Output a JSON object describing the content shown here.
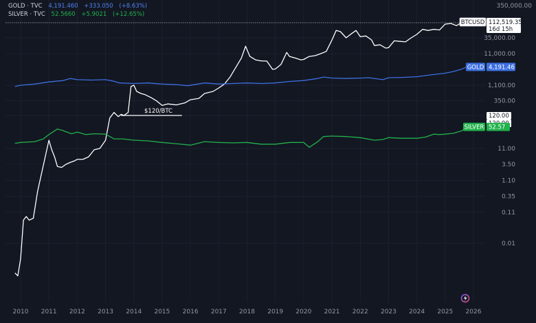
{
  "legend": {
    "gold": {
      "name": "GOLD · TVC",
      "value": "4,191.460",
      "change": "+333.050",
      "change_pct": "(+8.63%)"
    },
    "silver": {
      "name": "SILVER · TVC",
      "value": "52.5660",
      "change": "+5.9021",
      "change_pct": "(+12.65%)"
    }
  },
  "colors": {
    "background": "#131722",
    "btc": "#ffffff",
    "gold": "#3d6fe0",
    "silver": "#22b14c",
    "axis_text": "#9598a1"
  },
  "badges": {
    "btc": {
      "label": "BTCUSD",
      "value": "112,519.35",
      "countdown": "16d 15h"
    },
    "gold": {
      "label": "GOLD",
      "value": "4,191.46"
    },
    "silver": {
      "label": "SILVER",
      "value": "52.57"
    },
    "level_a": "120.00",
    "level_b": "120.00"
  },
  "annotation": {
    "label": "$120/BTC",
    "value": 120
  },
  "chart_data": {
    "type": "line",
    "scale": "log",
    "x_ticks": [
      "2010",
      "2011",
      "2012",
      "2013",
      "2014",
      "2015",
      "2016",
      "2017",
      "2018",
      "2019",
      "2020",
      "2021",
      "2022",
      "2023",
      "2024",
      "2025",
      "2026"
    ],
    "y_ticks": [
      "35,000.00",
      "11,000.00",
      "1,100.00",
      "350.00",
      "120.00",
      "11.00",
      "3.50",
      "1.10",
      "0.35",
      "0.11",
      "0.01"
    ],
    "partial_y_tick": "350,000.00",
    "xlim": [
      2009.6,
      2026.7
    ],
    "series": [
      {
        "name": "BTCUSD",
        "x": [
          2009.8,
          2009.9,
          2010.0,
          2010.1,
          2010.2,
          2010.3,
          2010.45,
          2010.6,
          2010.75,
          2010.9,
          2011.0,
          2011.1,
          2011.2,
          2011.3,
          2011.45,
          2011.6,
          2011.75,
          2011.9,
          2012.0,
          2012.2,
          2012.4,
          2012.6,
          2012.8,
          2013.0,
          2013.15,
          2013.3,
          2013.45,
          2013.55,
          2013.65,
          2013.8,
          2013.9,
          2014.0,
          2014.1,
          2014.25,
          2014.4,
          2014.6,
          2014.8,
          2015.0,
          2015.2,
          2015.5,
          2015.8,
          2016.0,
          2016.3,
          2016.5,
          2016.8,
          2017.0,
          2017.2,
          2017.4,
          2017.6,
          2017.8,
          2017.95,
          2018.1,
          2018.3,
          2018.5,
          2018.7,
          2018.9,
          2019.0,
          2019.2,
          2019.4,
          2019.5,
          2019.7,
          2019.9,
          2020.0,
          2020.2,
          2020.4,
          2020.6,
          2020.8,
          2021.0,
          2021.15,
          2021.3,
          2021.5,
          2021.7,
          2021.85,
          2022.0,
          2022.2,
          2022.4,
          2022.5,
          2022.7,
          2022.9,
          2023.0,
          2023.2,
          2023.4,
          2023.6,
          2023.8,
          2024.0,
          2024.2,
          2024.4,
          2024.6,
          2024.8,
          2025.0,
          2025.2,
          2025.4,
          2025.6,
          2025.75
        ],
        "y": [
          0.001,
          0.0008,
          0.003,
          0.06,
          0.08,
          0.06,
          0.07,
          0.5,
          2,
          8,
          20,
          10,
          6,
          3,
          2.8,
          3.5,
          4,
          4.5,
          5,
          5,
          6,
          10,
          11,
          20,
          100,
          150,
          110,
          130,
          120,
          150,
          1000,
          1100,
          700,
          600,
          550,
          450,
          350,
          250,
          280,
          260,
          300,
          380,
          420,
          600,
          700,
          900,
          1200,
          2000,
          4000,
          8000,
          19000,
          9000,
          7000,
          6500,
          6400,
          3500,
          3600,
          5000,
          12000,
          9000,
          8000,
          7000,
          7200,
          9000,
          9500,
          11000,
          13000,
          30000,
          60000,
          55000,
          35000,
          48000,
          60000,
          38000,
          40000,
          30000,
          20000,
          21000,
          16500,
          17000,
          28000,
          27000,
          26000,
          35000,
          45000,
          65000,
          60000,
          65000,
          62000,
          95000,
          100000,
          85000,
          110000,
          112519.35
        ]
      },
      {
        "name": "GOLD",
        "x": [
          2009.8,
          2010.0,
          2010.5,
          2011.0,
          2011.5,
          2011.75,
          2012.0,
          2012.5,
          2013.0,
          2013.25,
          2013.5,
          2014.0,
          2014.5,
          2015.0,
          2015.5,
          2015.9,
          2016.5,
          2017.0,
          2017.5,
          2018.0,
          2018.5,
          2019.0,
          2019.5,
          2020.0,
          2020.5,
          2020.7,
          2021.0,
          2021.5,
          2022.0,
          2022.3,
          2022.8,
          2023.0,
          2023.5,
          2024.0,
          2024.5,
          2025.0,
          2025.3,
          2025.6,
          2025.75
        ],
        "y": [
          1000,
          1100,
          1200,
          1400,
          1550,
          1800,
          1650,
          1600,
          1650,
          1500,
          1300,
          1250,
          1300,
          1200,
          1150,
          1060,
          1300,
          1200,
          1250,
          1300,
          1250,
          1300,
          1450,
          1550,
          1800,
          2000,
          1850,
          1800,
          1850,
          1900,
          1650,
          1900,
          1950,
          2050,
          2350,
          2650,
          3000,
          3600,
          4191.46
        ]
      },
      {
        "name": "SILVER",
        "x": [
          2009.8,
          2010.0,
          2010.5,
          2010.8,
          2011.0,
          2011.3,
          2011.5,
          2011.8,
          2012.0,
          2012.3,
          2012.6,
          2013.0,
          2013.3,
          2013.6,
          2014.0,
          2014.5,
          2015.0,
          2015.5,
          2016.0,
          2016.5,
          2017.0,
          2017.5,
          2018.0,
          2018.5,
          2019.0,
          2019.5,
          2020.0,
          2020.2,
          2020.5,
          2020.7,
          2021.0,
          2021.5,
          2022.0,
          2022.5,
          2022.8,
          2023.0,
          2023.5,
          2024.0,
          2024.3,
          2024.6,
          2024.8,
          2025.0,
          2025.3,
          2025.6,
          2025.75
        ],
        "y": [
          16,
          17,
          18,
          22,
          30,
          45,
          40,
          32,
          36,
          30,
          32,
          31,
          22,
          22,
          20,
          19,
          17,
          15.5,
          14,
          18,
          17,
          16.5,
          17,
          15,
          15,
          17,
          17,
          12,
          18,
          26,
          27,
          26,
          24,
          20,
          21,
          24,
          23,
          23,
          25,
          31,
          30,
          31,
          33,
          40,
          52.57
        ]
      }
    ],
    "annotations": [
      {
        "label": "$120/BTC",
        "y": 120,
        "x_from": 2013.55,
        "x_to": 2015.7
      }
    ]
  }
}
